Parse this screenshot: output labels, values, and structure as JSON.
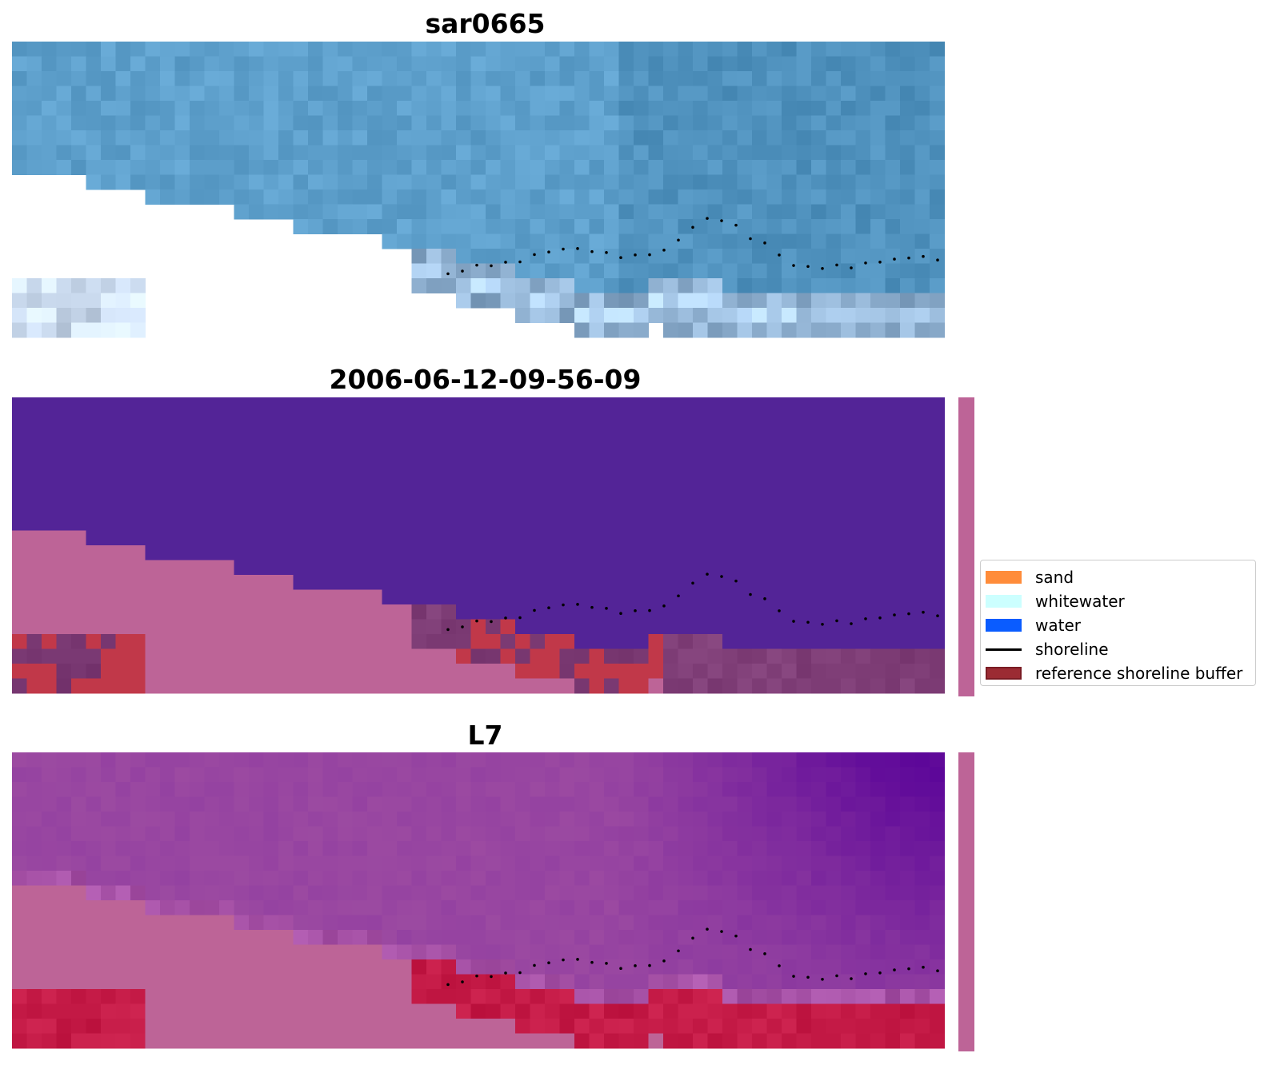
{
  "panels": [
    {
      "title": "sar0665",
      "style": "rgb"
    },
    {
      "title": "2006-06-12-09-56-09",
      "style": "classified"
    },
    {
      "title": "L7",
      "style": "index"
    }
  ],
  "legend": {
    "items": [
      {
        "label": "sand",
        "color": "#ff8c3a",
        "kind": "patch"
      },
      {
        "label": "whitewater",
        "color": "#ccffff",
        "kind": "patch"
      },
      {
        "label": "water",
        "color": "#0a5cff",
        "kind": "patch"
      },
      {
        "label": "shoreline",
        "color": "#000000",
        "kind": "line"
      },
      {
        "label": "reference shoreline buffer",
        "color": "#9b2b33",
        "kind": "patch"
      }
    ]
  },
  "colors": {
    "ocean": "#5ea0cc",
    "classified_water": "#532497",
    "nodata": "#bd6497",
    "buffer": "#c13849",
    "l7_high": "#9846a1",
    "l7_low": "#5c0699",
    "l7_land": "#c41a46"
  }
}
